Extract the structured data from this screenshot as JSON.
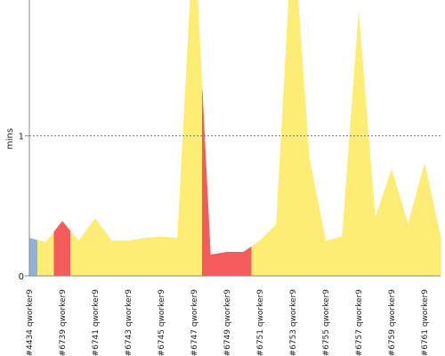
{
  "chart_data": {
    "type": "area",
    "y_label": "mins",
    "categories": [
      "#4434 qworker9",
      null,
      "#6739 qworker9",
      null,
      "#6741 qworker9",
      null,
      "#6743 qworker9",
      null,
      "#6745 qworker9",
      null,
      "#6747 qworker9",
      null,
      "#6749 qworker9",
      null,
      "#6751 qworker9",
      null,
      "#6753 qworker9",
      null,
      "#6755 qworker9",
      null,
      "#6757 qworker9",
      null,
      "#6759 qworker9",
      null,
      "#6761 qworker9",
      null
    ],
    "values": [
      0.27,
      0.24,
      0.39,
      0.25,
      0.41,
      0.25,
      0.25,
      0.27,
      0.28,
      0.27,
      2.5,
      0.15,
      0.17,
      0.17,
      0.25,
      0.37,
      2.5,
      0.84,
      0.25,
      0.28,
      1.88,
      0.41,
      0.76,
      0.37,
      0.8,
      0.27
    ],
    "colors": [
      "#8fb1dc",
      "#fded74",
      "#f45b5b",
      "#fded74",
      "#fded74",
      "#fded74",
      "#fded74",
      "#fded74",
      "#fded74",
      "#fded74",
      "#fded74",
      "#f45b5b",
      "#f45b5b",
      "#f45b5b",
      "#fded74",
      "#fded74",
      "#fded74",
      "#fded74",
      "#fded74",
      "#fded74",
      "#fded74",
      "#fded74",
      "#fded74",
      "#fded74",
      "#fded74",
      "#fded74"
    ],
    "ylim": [
      0,
      1.97
    ],
    "yticks": [
      0,
      1
    ],
    "grid": true
  }
}
